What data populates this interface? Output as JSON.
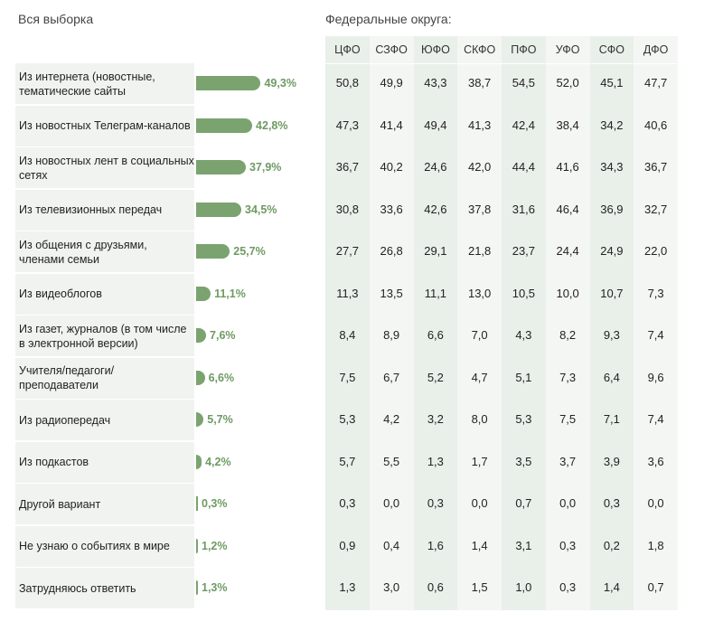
{
  "titles": {
    "left": "Вся выборка",
    "right": "Федеральные округа:"
  },
  "chart_data": {
    "type": "bar",
    "title": "Вся выборка",
    "categories": [
      "Из интернета (новостные, тематические сайты",
      "Из новостных Телеграм-каналов",
      "Из новостных лент в социальных сетях",
      "Из телевизионных передач",
      "Из общения с друзьями, членами семьи",
      "Из видеоблогов",
      "Из газет, журналов (в том числе в электронной версии)",
      "Учителя/педагоги/ преподаватели",
      "Из радиопередач",
      "Из подкастов",
      "Другой вариант",
      "Не узнаю о событиях в мире",
      "Затрудняюсь ответить"
    ],
    "values": [
      49.3,
      42.8,
      37.9,
      34.5,
      25.7,
      11.1,
      7.6,
      6.6,
      5.7,
      4.2,
      0.3,
      1.2,
      1.3
    ],
    "value_labels": [
      "49,3%",
      "42,8%",
      "37,9%",
      "34,5%",
      "25,7%",
      "11,1%",
      "7,6%",
      "6,6%",
      "5,7%",
      "4,2%",
      "0,3%",
      "1,2%",
      "1,3%"
    ],
    "bar_color": "#7aa36f",
    "table": {
      "title": "Федеральные округа:",
      "columns": [
        "ЦФО",
        "СЗФО",
        "ЮФО",
        "СКФО",
        "ПФО",
        "УФО",
        "СФО",
        "ДФО"
      ],
      "rows": [
        [
          "50,8",
          "49,9",
          "43,3",
          "38,7",
          "54,5",
          "52,0",
          "45,1",
          "47,7"
        ],
        [
          "47,3",
          "41,4",
          "49,4",
          "41,3",
          "42,4",
          "38,4",
          "34,2",
          "40,6"
        ],
        [
          "36,7",
          "40,2",
          "24,6",
          "42,0",
          "44,4",
          "41,6",
          "34,3",
          "36,7"
        ],
        [
          "30,8",
          "33,6",
          "42,6",
          "37,8",
          "31,6",
          "46,4",
          "36,9",
          "32,7"
        ],
        [
          "27,7",
          "26,8",
          "29,1",
          "21,8",
          "23,7",
          "24,4",
          "24,9",
          "22,0"
        ],
        [
          "11,3",
          "13,5",
          "11,1",
          "13,0",
          "10,5",
          "10,0",
          "10,7",
          "7,3"
        ],
        [
          "8,4",
          "8,9",
          "6,6",
          "7,0",
          "4,3",
          "8,2",
          "9,3",
          "7,4"
        ],
        [
          "7,5",
          "6,7",
          "5,2",
          "4,7",
          "5,1",
          "7,3",
          "6,4",
          "9,6"
        ],
        [
          "5,3",
          "4,2",
          "3,2",
          "8,0",
          "5,3",
          "7,5",
          "7,1",
          "7,4"
        ],
        [
          "5,7",
          "5,5",
          "1,3",
          "1,7",
          "3,5",
          "3,7",
          "3,9",
          "3,6"
        ],
        [
          "0,3",
          "0,0",
          "0,3",
          "0,0",
          "0,7",
          "0,0",
          "0,3",
          "0,0"
        ],
        [
          "0,9",
          "0,4",
          "1,6",
          "1,4",
          "3,1",
          "0,3",
          "0,2",
          "1,8"
        ],
        [
          "1,3",
          "3,0",
          "0,6",
          "1,5",
          "1,0",
          "0,3",
          "1,4",
          "0,7"
        ]
      ]
    }
  }
}
